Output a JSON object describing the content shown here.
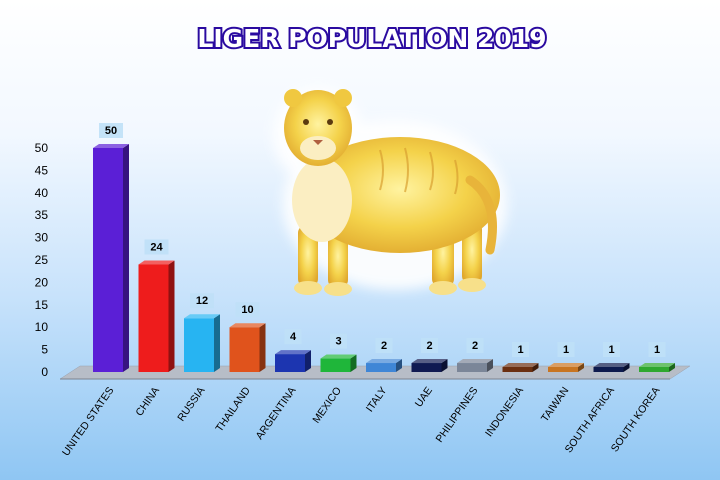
{
  "chart_data": {
    "type": "bar",
    "title": "LIGER POPULATION 2019",
    "categories": [
      "UNITED STATES",
      "CHINA",
      "RUSSIA",
      "THAILAND",
      "ARGENTINA",
      "MEXICO",
      "ITALY",
      "UAE",
      "PHILIPPINES",
      "INDONESIA",
      "TAIWAN",
      "SOUTH AFRICA",
      "SOUTH KOREA"
    ],
    "values": [
      50,
      24,
      12,
      10,
      4,
      3,
      2,
      2,
      2,
      1,
      1,
      1,
      1
    ],
    "data_labels": [
      "50",
      "24",
      "12",
      "10",
      "4",
      "3",
      "2",
      "2",
      "2",
      "1",
      "1",
      "1",
      "1"
    ],
    "bar_colors": [
      "#5b1fd6",
      "#ee1c1c",
      "#27b4f2",
      "#e0531c",
      "#1c35b0",
      "#1fb63a",
      "#3f86d6",
      "#101a52",
      "#7b8698",
      "#6b2f10",
      "#c87521",
      "#0d1a4e",
      "#2fa82f"
    ],
    "ylim": [
      0,
      50
    ],
    "yticks": [
      "0",
      "5",
      "10",
      "15",
      "20",
      "25",
      "30",
      "35",
      "40",
      "45",
      "50"
    ],
    "xlabel": "",
    "ylabel": "",
    "grid": false,
    "legend": "none"
  },
  "illustration": {
    "icon": "liger-icon",
    "fur_color": "#f4d24a"
  }
}
